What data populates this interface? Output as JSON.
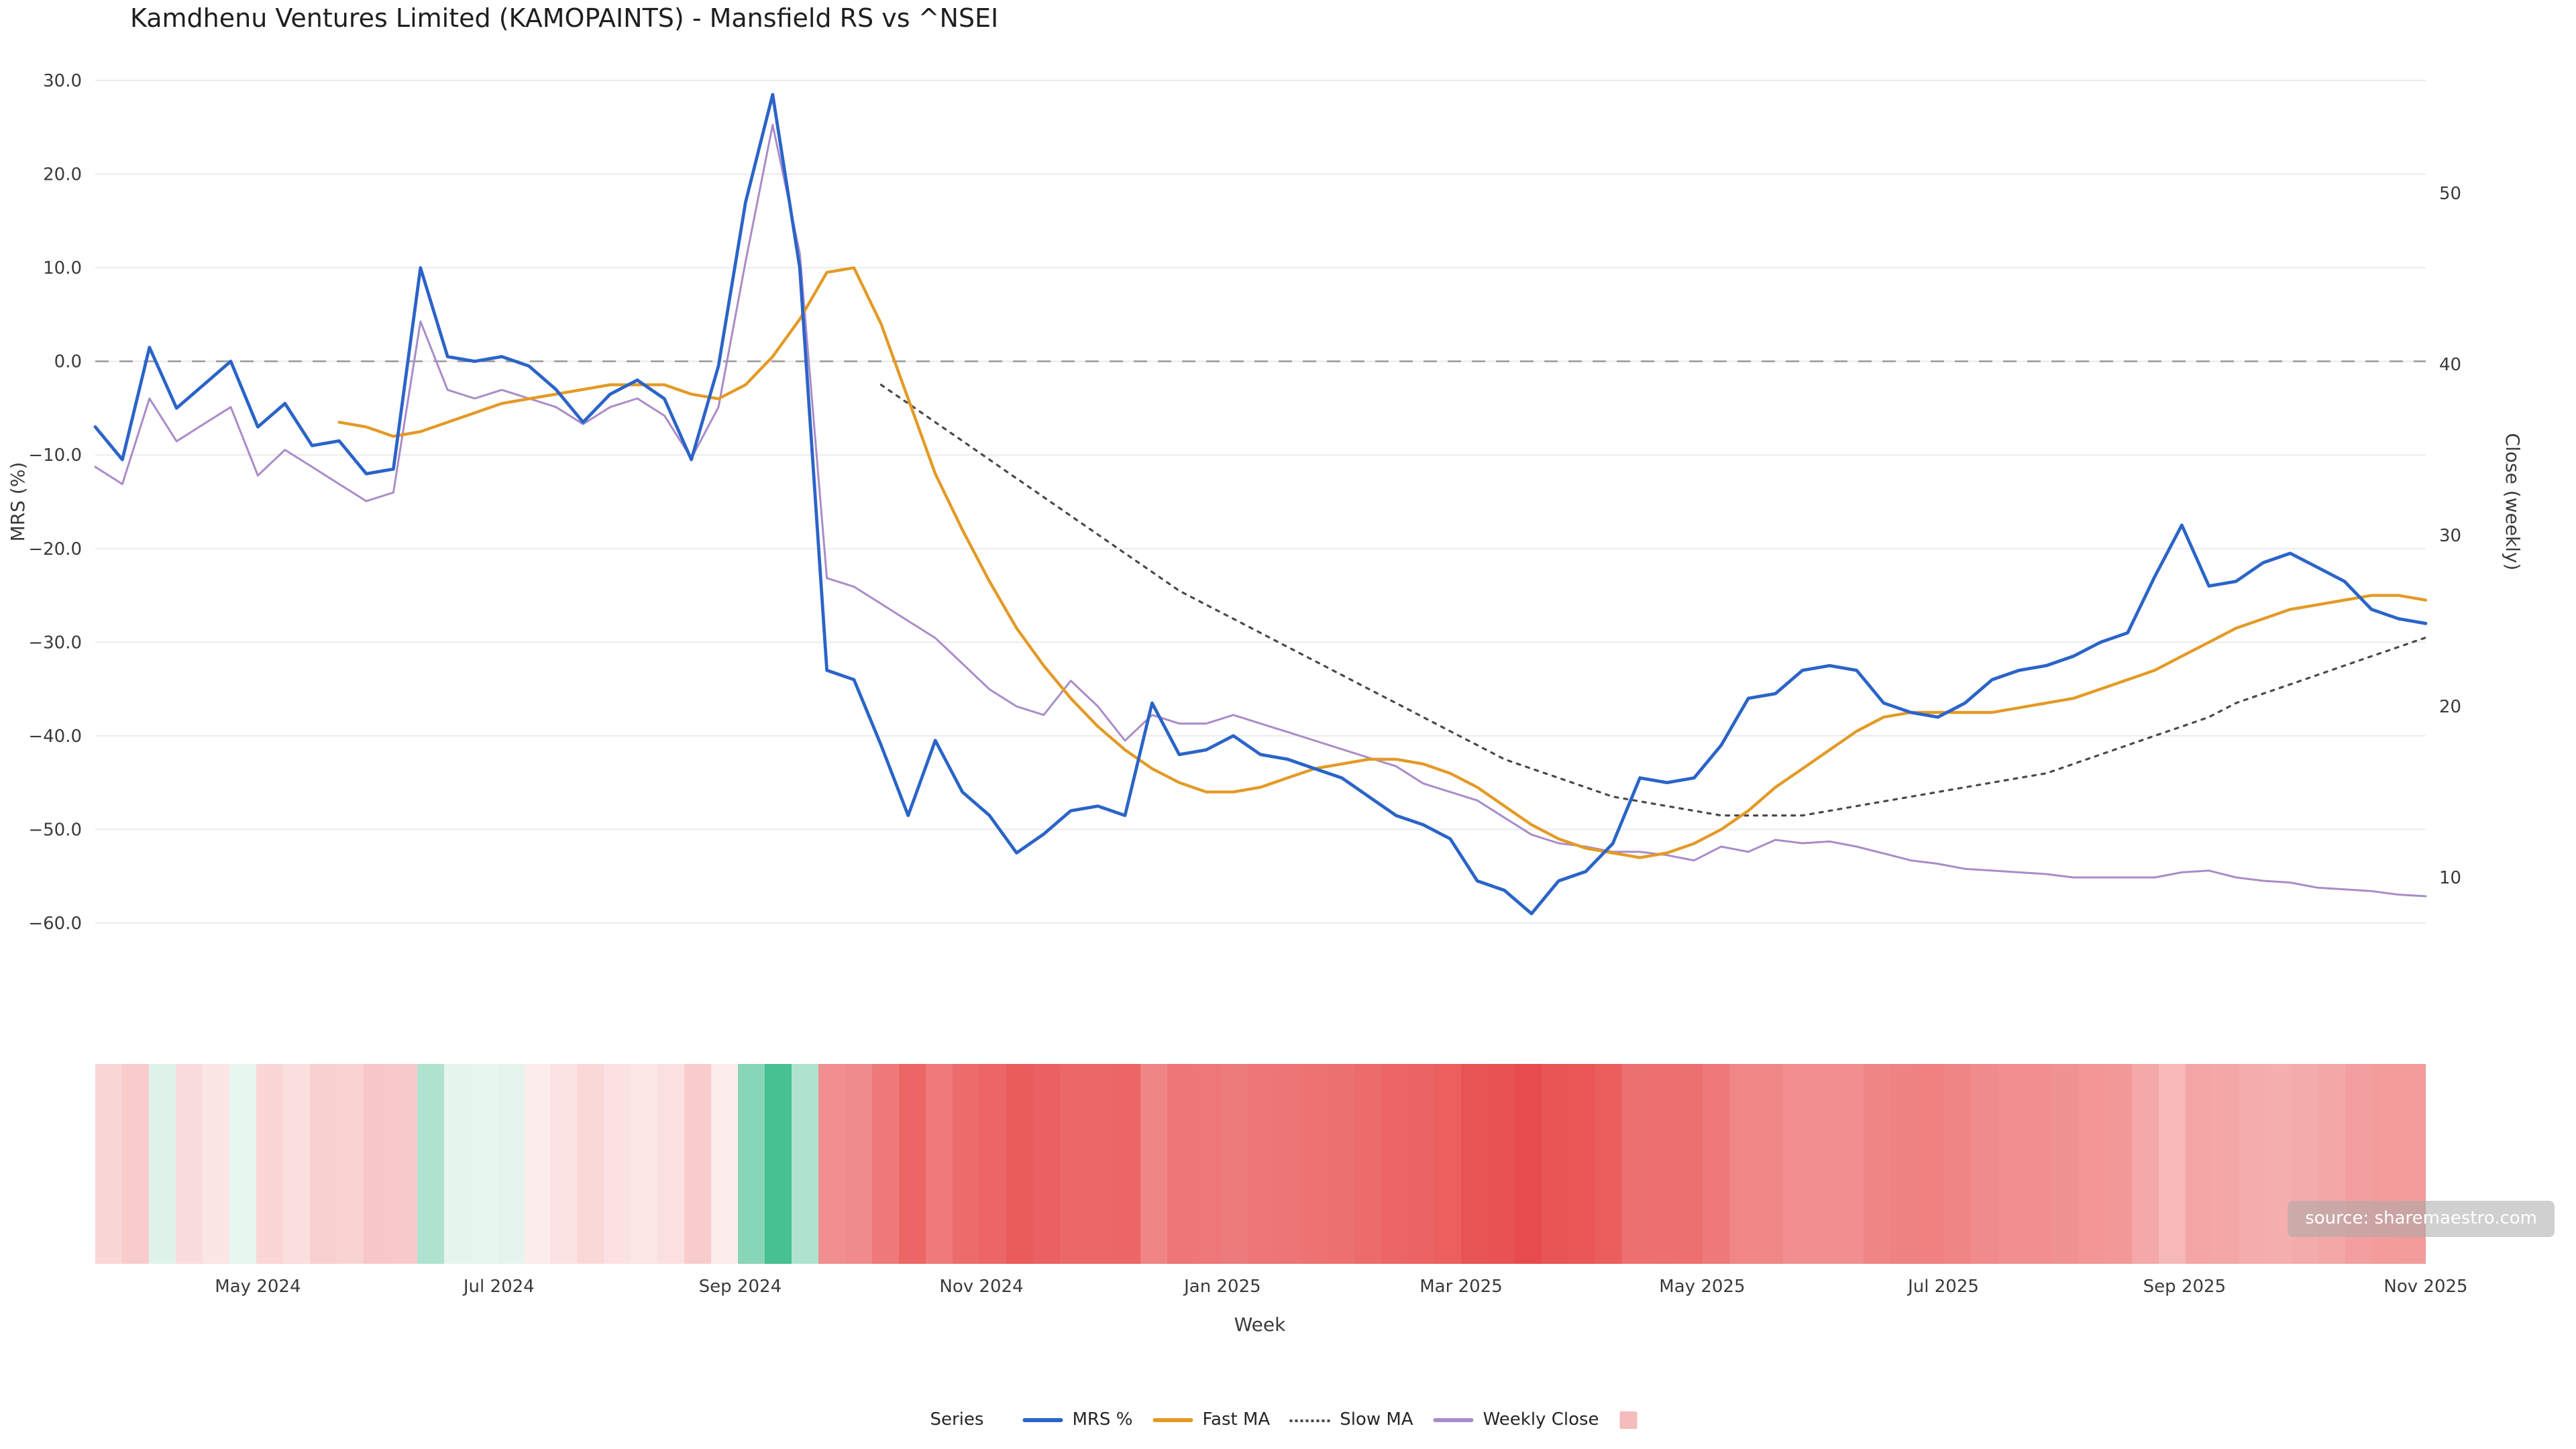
{
  "title": "Kamdhenu Ventures Limited (KAMOPAINTS) - Mansfield RS vs ^NSEI",
  "source_label": "source: sharemaestro.com",
  "legend": {
    "title": "Series",
    "items": [
      {
        "label": "MRS %",
        "color": "#2b64c8",
        "style": "solid"
      },
      {
        "label": "Fast MA",
        "color": "#e39a26",
        "style": "solid"
      },
      {
        "label": "Slow MA",
        "color": "#4a4a4a",
        "style": "dotted"
      },
      {
        "label": "Weekly Close",
        "color": "#a98cc9",
        "style": "solid"
      },
      {
        "label": "",
        "color": "#f4bcbc",
        "style": "patch"
      }
    ]
  },
  "chart_data": {
    "type": "line",
    "title": "Kamdhenu Ventures Limited (KAMOPAINTS) - Mansfield RS vs ^NSEI",
    "xlabel": "Week",
    "ylabel_left": "MRS (%)",
    "ylabel_right": "Close (weekly)",
    "grid": "horizontal",
    "zero_line": {
      "value": 0,
      "style": "dashed",
      "color": "#a0a0a0"
    },
    "ylim_left": [
      -63.5,
      33.5
    ],
    "ylim_right": [
      5.2,
      58.4
    ],
    "y_left_tick_values": [
      30,
      20,
      10,
      0,
      -10,
      -20,
      -30,
      -40,
      -50,
      -60
    ],
    "y_left_tick_labels": [
      "30.0",
      "20.0",
      "10.0",
      "0.0",
      "−10.0",
      "−20.0",
      "−30.0",
      "−40.0",
      "−50.0",
      "−60.0"
    ],
    "y_right_tick_values": [
      50,
      40,
      30,
      20,
      10
    ],
    "y_right_tick_labels": [
      "50",
      "40",
      "30",
      "20",
      "10"
    ],
    "x_tick_labels": [
      "May 2024",
      "Jul 2024",
      "Sep 2024",
      "Nov 2024",
      "Jan 2025",
      "Mar 2025",
      "May 2025",
      "Jul 2025",
      "Sep 2025",
      "Nov 2025"
    ],
    "x_tick_indices": [
      6,
      14.9,
      23.8,
      32.7,
      41.6,
      50.4,
      59.3,
      68.2,
      77.1,
      86
    ],
    "x_unit": "week",
    "series": [
      {
        "name": "MRS %",
        "axis": "left",
        "color": "#2b64c8",
        "width": 2.4,
        "dash": null,
        "values": [
          -7,
          -10.5,
          1.5,
          -5,
          -2.5,
          0,
          -7,
          -4.5,
          -9,
          -8.5,
          -12,
          -11.5,
          10,
          0.5,
          0,
          0.5,
          -0.5,
          -3,
          -6.5,
          -3.5,
          -2,
          -4,
          -10.5,
          -0.5,
          17,
          28.5,
          10,
          -33,
          -34,
          -41,
          -48.5,
          -40.5,
          -46,
          -48.5,
          -52.5,
          -50.5,
          -48,
          -47.5,
          -48.5,
          -36.5,
          -42,
          -41.5,
          -40,
          -42,
          -42.5,
          -43.5,
          -44.5,
          -46.5,
          -48.5,
          -49.5,
          -51,
          -55.5,
          -56.5,
          -59,
          -55.5,
          -54.5,
          -51.5,
          -44.5,
          -45,
          -44.5,
          -41,
          -36,
          -35.5,
          -33,
          -32.5,
          -33,
          -36.5,
          -37.5,
          -38,
          -36.5,
          -34,
          -33,
          -32.5,
          -31.5,
          -30,
          -29,
          -23,
          -17.5,
          -24,
          -23.5,
          -21.5,
          -20.5,
          -22,
          -23.5,
          -26.5,
          -27.5,
          -28
        ]
      },
      {
        "name": "Fast MA",
        "axis": "left",
        "color": "#e39a26",
        "width": 2.2,
        "dash": null,
        "values": [
          null,
          null,
          null,
          null,
          null,
          null,
          null,
          null,
          null,
          -6.5,
          -7,
          -8,
          -7.5,
          -6.5,
          -5.5,
          -4.5,
          -4,
          -3.5,
          -3,
          -2.5,
          -2.5,
          -2.5,
          -3.5,
          -4,
          -2.5,
          0.5,
          4.5,
          9.5,
          10,
          4,
          -4,
          -12,
          -18,
          -23.5,
          -28.5,
          -32.5,
          -36,
          -39,
          -41.5,
          -43.5,
          -45,
          -46,
          -46,
          -45.5,
          -44.5,
          -43.5,
          -43,
          -42.5,
          -42.5,
          -43,
          -44,
          -45.5,
          -47.5,
          -49.5,
          -51,
          -52,
          -52.5,
          -53,
          -52.5,
          -51.5,
          -50,
          -48,
          -45.5,
          -43.5,
          -41.5,
          -39.5,
          -38,
          -37.5,
          -37.5,
          -37.5,
          -37.5,
          -37,
          -36.5,
          -36,
          -35,
          -34,
          -33,
          -31.5,
          -30,
          -28.5,
          -27.5,
          -26.5,
          -26,
          -25.5,
          -25,
          -25,
          -25.5
        ]
      },
      {
        "name": "Slow MA",
        "axis": "left",
        "color": "#4a4a4a",
        "width": 1.6,
        "dash": "2.5 4.5",
        "values": [
          null,
          null,
          null,
          null,
          null,
          null,
          null,
          null,
          null,
          null,
          null,
          null,
          null,
          null,
          null,
          null,
          null,
          null,
          null,
          null,
          null,
          null,
          null,
          null,
          null,
          null,
          null,
          null,
          null,
          -2.5,
          -4.5,
          -6.5,
          -8.5,
          -10.5,
          -12.5,
          -14.5,
          -16.5,
          -18.5,
          -20.5,
          -22.5,
          -24.5,
          -26,
          -27.5,
          -29,
          -30.5,
          -32,
          -33.5,
          -35,
          -36.5,
          -38,
          -39.5,
          -41,
          -42.5,
          -43.5,
          -44.5,
          -45.5,
          -46.5,
          -47,
          -47.5,
          -48,
          -48.5,
          -48.5,
          -48.5,
          -48.5,
          -48,
          -47.5,
          -47,
          -46.5,
          -46,
          -45.5,
          -45,
          -44.5,
          -44,
          -43,
          -42,
          -41,
          -40,
          -39,
          -38,
          -36.5,
          -35.5,
          -34.5,
          -33.5,
          -32.5,
          -31.5,
          -30.5,
          -29.5
        ]
      },
      {
        "name": "Weekly Close",
        "axis": "right",
        "color": "#a98cc9",
        "width": 1.5,
        "dash": null,
        "values": [
          34,
          33,
          38,
          35.5,
          36.5,
          37.5,
          33.5,
          35,
          34,
          33,
          32,
          32.5,
          42.5,
          38.5,
          38,
          38.5,
          38,
          37.5,
          36.5,
          37.5,
          38,
          37,
          34.5,
          37.5,
          46,
          54,
          46.5,
          27.5,
          27,
          26,
          25,
          24,
          22.5,
          21,
          20,
          19.5,
          21.5,
          20,
          18,
          19.5,
          19,
          19,
          19.5,
          19,
          18.5,
          18,
          17.5,
          17,
          16.5,
          15.5,
          15,
          14.5,
          13.5,
          12.5,
          12,
          11.8,
          11.5,
          11.5,
          11.3,
          11,
          11.8,
          11.5,
          12.2,
          12,
          12.1,
          11.8,
          11.4,
          11,
          10.8,
          10.5,
          10.4,
          10.3,
          10.2,
          10,
          10,
          10,
          10,
          10.3,
          10.4,
          10,
          9.8,
          9.7,
          9.4,
          9.3,
          9.2,
          9,
          8.9
        ]
      }
    ],
    "heatmap_strip": {
      "derived_from": "MRS %",
      "positive_color": "#3ebd8d",
      "positive_light": "#e8f6f0",
      "negative_color": "#e84949",
      "negative_light": "#fdeeee",
      "negative_scale_max": 60,
      "positive_scale_max": 30
    }
  }
}
